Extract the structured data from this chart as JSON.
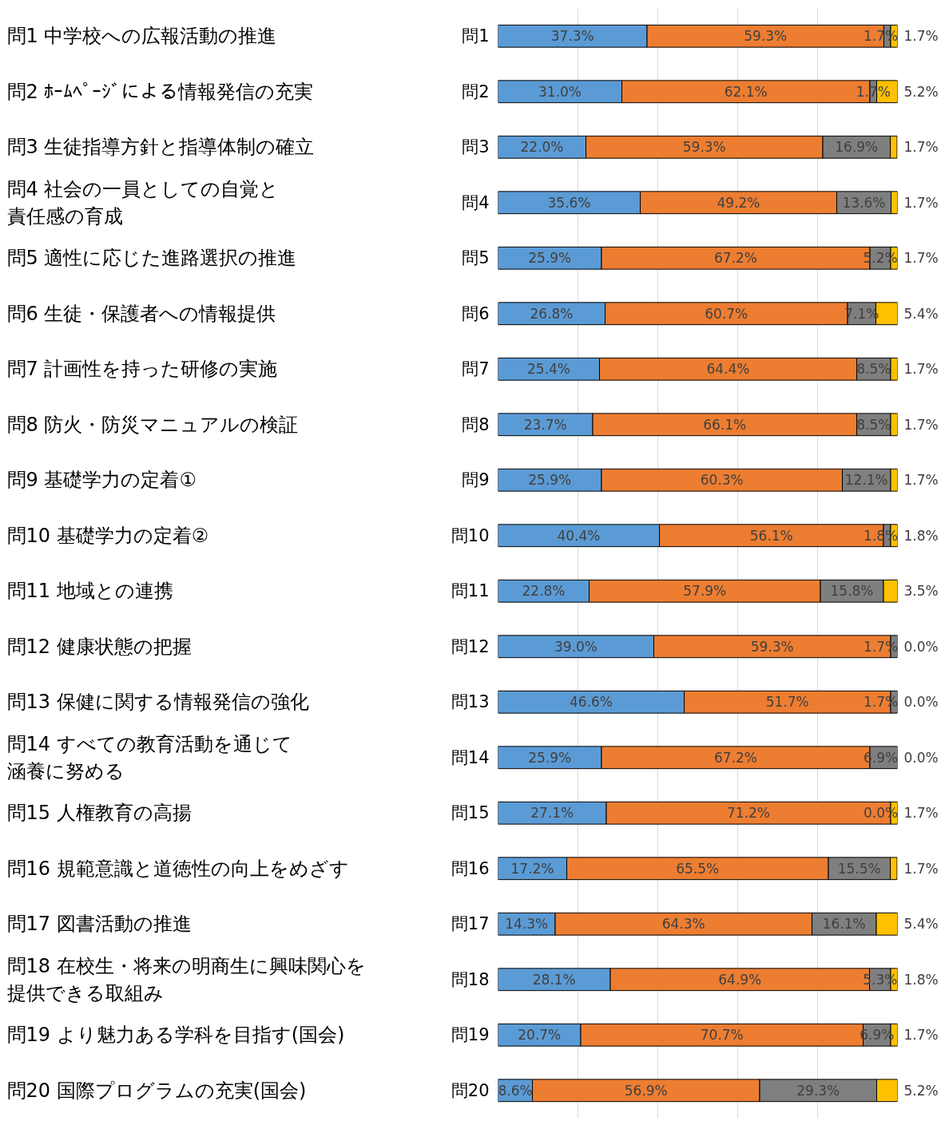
{
  "chart_data": {
    "type": "bar",
    "orientation": "horizontal",
    "stacked": true,
    "grid": "x",
    "tick_labels": "y",
    "categories": [
      "問1",
      "問2",
      "問3",
      "問4",
      "問5",
      "問6",
      "問7",
      "問8",
      "問9",
      "問10",
      "問11",
      "問12",
      "問13",
      "問14",
      "問15",
      "問16",
      "問17",
      "問18",
      "問19",
      "問20"
    ],
    "xlim": [
      0,
      100
    ],
    "xticks": [
      {
        "value": 20,
        "label": null
      },
      {
        "value": 40,
        "label": null
      },
      {
        "value": 60,
        "label": null
      },
      {
        "value": 80,
        "label": null
      }
    ],
    "series": [
      {
        "color": "#5b9bd5",
        "values": [
          37.3,
          31.0,
          22.0,
          35.6,
          25.9,
          26.8,
          25.4,
          23.7,
          25.9,
          40.4,
          22.8,
          39.0,
          46.6,
          25.9,
          27.1,
          17.2,
          14.3,
          28.1,
          20.7,
          8.6
        ],
        "value_labels": [
          "37.3%",
          "31.0%",
          "22.0%",
          "35.6%",
          "25.9%",
          "26.8%",
          "25.4%",
          "23.7%",
          "25.9%",
          "40.4%",
          "22.8%",
          "39.0%",
          "46.6%",
          "25.9%",
          "27.1%",
          "17.2%",
          "14.3%",
          "28.1%",
          "20.7%",
          "8.6%"
        ]
      },
      {
        "color": "#ed7d31",
        "values": [
          59.3,
          62.1,
          59.3,
          49.2,
          67.2,
          60.7,
          64.4,
          66.1,
          60.3,
          56.1,
          57.9,
          59.3,
          51.7,
          67.2,
          71.2,
          65.5,
          64.3,
          64.9,
          70.7,
          56.9
        ],
        "value_labels": [
          "59.3%",
          "62.1%",
          "59.3%",
          "49.2%",
          "67.2%",
          "60.7%",
          "64.4%",
          "66.1%",
          "60.3%",
          "56.1%",
          "57.9%",
          "59.3%",
          "51.7%",
          "67.2%",
          "71.2%",
          "65.5%",
          "64.3%",
          "64.9%",
          "70.7%",
          "56.9%"
        ]
      },
      {
        "color": "#7f7f7f",
        "values": [
          1.7,
          1.7,
          16.9,
          13.6,
          5.2,
          7.1,
          8.5,
          8.5,
          12.1,
          1.8,
          15.8,
          1.7,
          1.7,
          6.9,
          0.0,
          15.5,
          16.1,
          5.3,
          6.9,
          29.3
        ],
        "value_labels": [
          "1.7%",
          "1.7%",
          "16.9%",
          "13.6%",
          "5.2%",
          "7.1%",
          "8.5%",
          "8.5%",
          "12.1%",
          "1.8%",
          "15.8%",
          "1.7%",
          "1.7%",
          "6.9%",
          "0.0%",
          "15.5%",
          "16.1%",
          "5.3%",
          "6.9%",
          "29.3%"
        ]
      },
      {
        "color": "#ffc000",
        "values": [
          1.7,
          5.2,
          1.7,
          1.7,
          1.7,
          5.4,
          1.7,
          1.7,
          1.7,
          1.8,
          3.5,
          0.0,
          0.0,
          0.0,
          1.7,
          1.7,
          5.4,
          1.8,
          1.7,
          5.2
        ],
        "value_labels": [
          "1.7%",
          "5.2%",
          "1.7%",
          "1.7%",
          "1.7%",
          "5.4%",
          "1.7%",
          "1.7%",
          "1.7%",
          "1.8%",
          "3.5%",
          "0.0%",
          "0.0%",
          "0.0%",
          "1.7%",
          "1.7%",
          "5.4%",
          "1.8%",
          "1.7%",
          "5.2%"
        ]
      }
    ],
    "annotations": [
      "問1 中学校への広報活動の推進",
      "問2 ﾎｰﾑﾍﾟｰｼﾞによる情報発信の充実",
      "問3 生徒指導方針と指導体制の確立",
      "問4 社会の一員としての自覚と責任感の育成",
      "問5 適性に応じた進路選択の推進",
      "問6 生徒・保護者への情報提供",
      "問7 計画性を持った研修の実施",
      "問8 防火・防災マニュアルの検証",
      "問9 基礎学力の定着①",
      "問10 基礎学力の定着②",
      "問11 地域との連携",
      "問12 健康状態の把握",
      "問13 保健に関する情報発信の強化",
      "問14 すべての教育活動を通じて涵養に努める",
      "問15 人権教育の高揚",
      "問16 規範意識と道徳性の向上をめざす",
      "問17 図書活動の推進",
      "問18 在校生・将来の明商生に興味関心を提供できる取組み",
      "問19 より魅力ある学科を目指す(国会)",
      "問20 国際プログラムの充実(国会)"
    ]
  }
}
